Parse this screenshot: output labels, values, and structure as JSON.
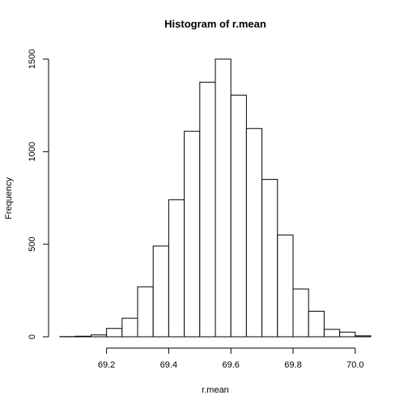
{
  "chart_data": {
    "type": "bar",
    "title": "Histogram of r.mean",
    "xlabel": "r.mean",
    "ylabel": "Frequency",
    "xlim": [
      69.05,
      70.05
    ],
    "ylim": [
      0,
      1500
    ],
    "bin_width": 0.05,
    "bin_starts": [
      69.05,
      69.1,
      69.15,
      69.2,
      69.25,
      69.3,
      69.35,
      69.4,
      69.45,
      69.5,
      69.55,
      69.6,
      69.65,
      69.7,
      69.75,
      69.8,
      69.85,
      69.9,
      69.95,
      70.0
    ],
    "values": [
      1,
      3,
      10,
      45,
      100,
      270,
      490,
      740,
      1110,
      1375,
      1500,
      1305,
      1125,
      850,
      550,
      258,
      138,
      40,
      25,
      5
    ],
    "x_ticks": [
      69.2,
      69.4,
      69.6,
      69.8,
      70.0
    ],
    "x_tick_labels": [
      "69.2",
      "69.4",
      "69.6",
      "69.8",
      "70.0"
    ],
    "y_ticks": [
      0,
      500,
      1000,
      1500
    ],
    "y_tick_labels": [
      "0",
      "500",
      "1000",
      "1500"
    ],
    "grid": false,
    "bar_fill": "#ffffff",
    "bar_stroke": "#000000"
  }
}
